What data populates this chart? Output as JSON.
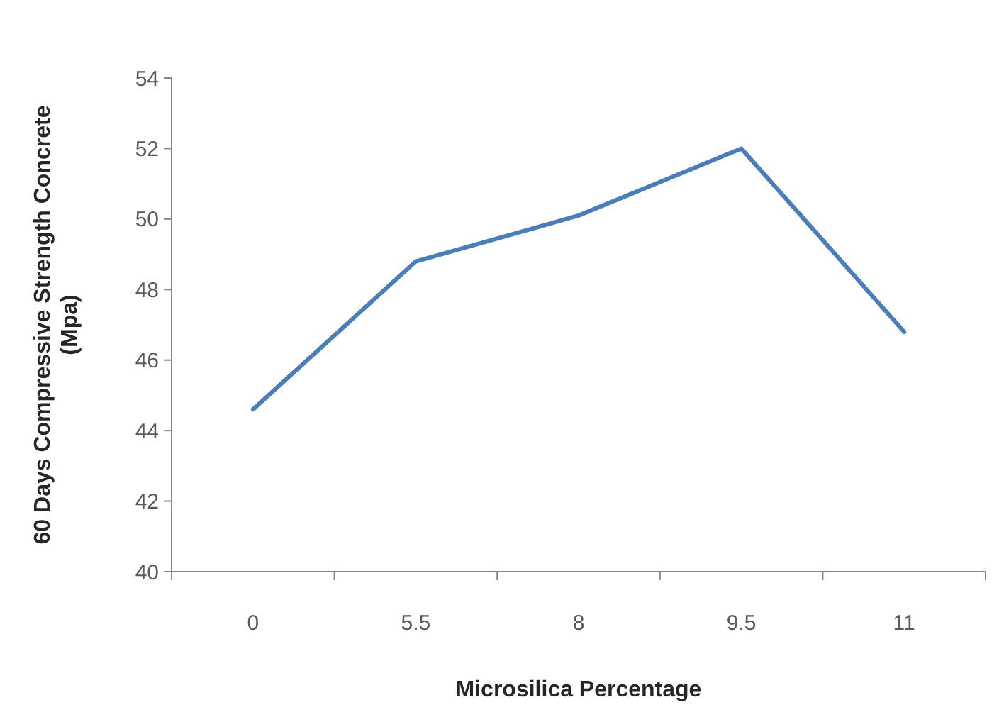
{
  "chart_data": {
    "type": "line",
    "xlabel": "Microsilica Percentage",
    "ylabel": "60 Days Compressive Strength Concrete (Mpa)",
    "categories": [
      "0",
      "5.5",
      "8",
      "9.5",
      "11"
    ],
    "series": [
      {
        "color": "#4a7ebb",
        "values": [
          44.6,
          48.8,
          50.1,
          52.0,
          46.8
        ]
      }
    ],
    "ylim": [
      40,
      54
    ],
    "yticks": [
      40,
      42,
      44,
      46,
      48,
      50,
      52,
      54
    ],
    "grid": false,
    "marker": "none",
    "line_style": "solid"
  }
}
